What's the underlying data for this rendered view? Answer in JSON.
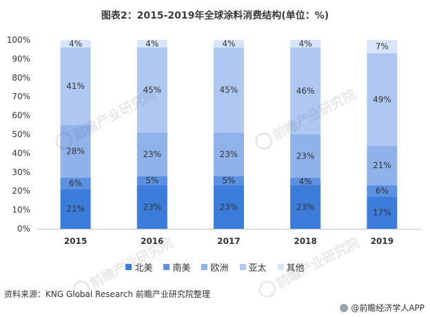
{
  "title": "图表2：2015-2019年全球涂料消费结构(单位：%)",
  "colors": {
    "北美": "#3c7ddb",
    "南美": "#5b91e0",
    "欧洲": "#8fb2ea",
    "亚太": "#aec8f1",
    "其他": "#d6e5f9"
  },
  "chart_data": {
    "type": "bar",
    "stacked": true,
    "categories": [
      "2015",
      "2016",
      "2017",
      "2018",
      "2019"
    ],
    "series": [
      {
        "name": "北美",
        "values": [
          21,
          23,
          23,
          23,
          17
        ],
        "labels": [
          "21%",
          "23%",
          "23%",
          "23%",
          "17%"
        ]
      },
      {
        "name": "南美",
        "values": [
          6,
          5,
          5,
          4,
          6
        ],
        "labels": [
          "6%",
          "5%",
          "5%",
          "4%",
          "6%"
        ]
      },
      {
        "name": "欧洲",
        "values": [
          28,
          23,
          23,
          23,
          21
        ],
        "labels": [
          "28%",
          "23%",
          "23%",
          "23%",
          "21%"
        ]
      },
      {
        "name": "亚太",
        "values": [
          41,
          45,
          45,
          46,
          49
        ],
        "labels": [
          "41%",
          "45%",
          "45%",
          "46%",
          "49%"
        ]
      },
      {
        "name": "其他",
        "values": [
          4,
          4,
          4,
          4,
          7
        ],
        "labels": [
          "4%",
          "4%",
          "4%",
          "4%",
          "7%"
        ]
      }
    ],
    "y_ticks": [
      "0%",
      "10%",
      "20%",
      "30%",
      "40%",
      "50%",
      "60%",
      "70%",
      "80%",
      "90%",
      "100%"
    ],
    "ylim": [
      0,
      100
    ],
    "grid": false,
    "legend": "bottom"
  },
  "legend_items": [
    "北美",
    "南美",
    "欧洲",
    "亚太",
    "其他"
  ],
  "source": "资料来源：KNG Global Research 前瞻产业研究院整理",
  "brand": "@前瞻经济学人APP",
  "watermark_text": "前瞻产业研究院"
}
